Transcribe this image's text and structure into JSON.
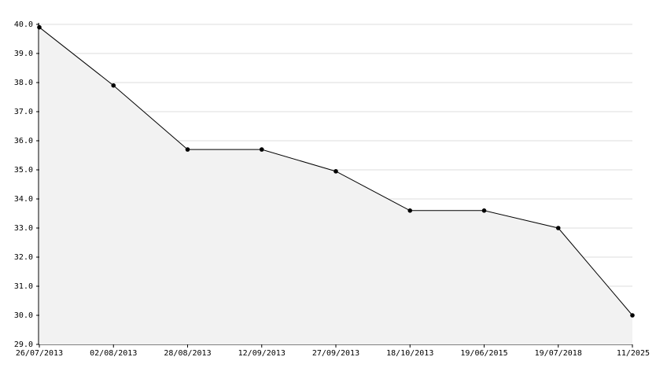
{
  "chart_data": {
    "type": "area",
    "categories": [
      "26/07/2013",
      "02/08/2013",
      "28/08/2013",
      "12/09/2013",
      "27/09/2013",
      "18/10/2013",
      "19/06/2015",
      "19/07/2018",
      "11/2025"
    ],
    "values": [
      39.9,
      37.9,
      35.7,
      35.7,
      34.95,
      33.6,
      33.6,
      33.0,
      30.0
    ],
    "color": "#000000",
    "fill_color": "#f2f2f2",
    "ylim": [
      29,
      40
    ],
    "yticks": [
      {
        "value": 29,
        "label": "29.0"
      },
      {
        "value": 30,
        "label": "30.0"
      },
      {
        "value": 31,
        "label": "31.0"
      },
      {
        "value": 32,
        "label": "32.0"
      },
      {
        "value": 33,
        "label": "33.0"
      },
      {
        "value": 34,
        "label": "34.0"
      },
      {
        "value": 35,
        "label": "35.0"
      },
      {
        "value": 36,
        "label": "36.0"
      },
      {
        "value": 37,
        "label": "37.0"
      },
      {
        "value": 38,
        "label": "38.0"
      },
      {
        "value": 39,
        "label": "39.0"
      },
      {
        "value": 40,
        "label": "40.0"
      }
    ],
    "grid": true
  }
}
